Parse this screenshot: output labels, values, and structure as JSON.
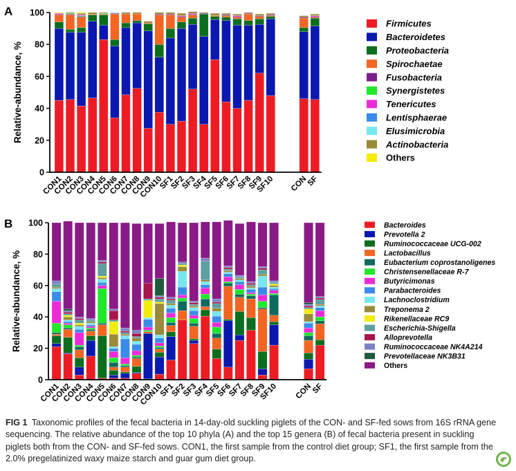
{
  "panels": [
    {
      "label": "A",
      "ylabel": "Relative-abundance, %",
      "ylim": [
        0,
        100
      ],
      "yticks": [
        0,
        20,
        40,
        60,
        80,
        100
      ]
    },
    {
      "label": "B",
      "ylabel": "Relative-abundance, %",
      "ylim": [
        0,
        100
      ],
      "yticks": [
        0,
        20,
        40,
        60,
        80,
        100
      ]
    }
  ],
  "chart_data": [
    {
      "type": "bar",
      "stacked": true,
      "ylabel": "Relative-abundance, %",
      "ylim": [
        0,
        100
      ],
      "grid": false,
      "legend": "right",
      "categories": [
        "CON1",
        "CON2",
        "CON3",
        "CON4",
        "CON5",
        "CON6",
        "CON7",
        "CON8",
        "CON9",
        "CON10",
        "SF1",
        "SF2",
        "SF3",
        "SF4",
        "SF5",
        "SF6",
        "SF7",
        "SF8",
        "SF9",
        "SF10",
        "CON",
        "SF"
      ],
      "series": [
        {
          "name": "Firmicutes",
          "color": "#ed1c24",
          "values": [
            45,
            45.5,
            41.5,
            46.5,
            83,
            34,
            48.5,
            52.5,
            27.5,
            37.5,
            30,
            32,
            52,
            30,
            70.5,
            44,
            40,
            45,
            62,
            48,
            46,
            45.5
          ]
        },
        {
          "name": "Bacteroidetes",
          "color": "#0a18b0",
          "values": [
            45,
            42,
            46,
            48,
            9,
            45,
            42,
            41,
            61,
            34.5,
            54,
            58,
            40.5,
            55,
            25,
            51,
            52,
            47,
            30.5,
            48,
            42,
            46
          ]
        },
        {
          "name": "Proteobacteria",
          "color": "#0b6e1e",
          "values": [
            4,
            2,
            3,
            4,
            6.5,
            4,
            3,
            1.5,
            4.5,
            8,
            6,
            4,
            4,
            14,
            2,
            2,
            4,
            3,
            3.5,
            1.5,
            2.5,
            5
          ]
        },
        {
          "name": "Spirochaetae",
          "color": "#f26522",
          "values": [
            4.5,
            9,
            6.5,
            0.5,
            0.5,
            16,
            5.5,
            4,
            0.5,
            18.5,
            8.5,
            3,
            2,
            0,
            0.5,
            1,
            1,
            4,
            1.5,
            0.5,
            6,
            0.5
          ]
        },
        {
          "name": "Fusobacteria",
          "color": "#7b1f8e",
          "values": [
            0.5,
            0.5,
            0.5,
            0,
            0,
            0.5,
            0,
            0,
            0,
            0.5,
            0.5,
            0.5,
            0.5,
            0.5,
            0,
            0.5,
            0.5,
            0.5,
            0.5,
            0.5,
            0.5,
            0.5
          ]
        },
        {
          "name": "Synergistetes",
          "color": "#1fe82a",
          "values": [
            0,
            0.5,
            0.5,
            0,
            0.5,
            0,
            0,
            0,
            0,
            0,
            0,
            0,
            0,
            0,
            0,
            0,
            0,
            0,
            0,
            0,
            0,
            0
          ]
        },
        {
          "name": "Tenericutes",
          "color": "#ec2bd8",
          "values": [
            0.5,
            0,
            0.5,
            0,
            0,
            0,
            0,
            0,
            0,
            0,
            0,
            0.5,
            0.5,
            0,
            0,
            0,
            0.5,
            0,
            0,
            0,
            0,
            0.5
          ]
        },
        {
          "name": "Lentisphaerae",
          "color": "#3a8be8",
          "values": [
            0,
            0,
            0,
            0,
            0,
            0,
            0,
            0,
            0,
            0,
            0,
            0,
            0,
            0,
            0,
            0,
            0,
            0,
            0,
            0,
            0,
            0
          ]
        },
        {
          "name": "Elusimicrobia",
          "color": "#78e6ef",
          "values": [
            0,
            0,
            0,
            0,
            0,
            0.5,
            0,
            0,
            0,
            0,
            0,
            0,
            0,
            0,
            0,
            0,
            0,
            0,
            0,
            0,
            0,
            0
          ]
        },
        {
          "name": "Actinobacteria",
          "color": "#9a8a3a",
          "values": [
            0,
            0.5,
            1,
            1,
            0.5,
            0,
            1,
            1,
            1,
            1,
            1,
            1.5,
            1,
            0.5,
            1.5,
            1,
            1,
            0.5,
            1,
            1,
            1,
            1
          ]
        },
        {
          "name": "Others",
          "color": "#f3ec0a",
          "values": [
            0.5,
            0,
            0.5,
            0,
            0,
            0,
            0,
            0,
            0,
            0,
            0,
            0,
            0,
            0,
            0,
            0,
            0,
            0,
            0,
            0,
            0,
            0
          ]
        }
      ]
    },
    {
      "type": "bar",
      "stacked": true,
      "ylabel": "Relative-abundance, %",
      "ylim": [
        0,
        100
      ],
      "grid": false,
      "legend": "right",
      "categories": [
        "CON1",
        "CON2",
        "CON3",
        "CON4",
        "CON5",
        "CON6",
        "CON7",
        "CON8",
        "CON9",
        "CON10",
        "SF1",
        "SF2",
        "SF3",
        "SF4",
        "SF5",
        "SF6",
        "SF7",
        "SF8",
        "SF9",
        "SF10",
        "CON",
        "SF"
      ],
      "series": [
        {
          "name": "Bacteroides",
          "color": "#ed1c24",
          "values": [
            21,
            16.5,
            3,
            15,
            1,
            1,
            1,
            4,
            0.5,
            3.5,
            12.5,
            38,
            23,
            40.5,
            13.5,
            8,
            25,
            31.5,
            3,
            22,
            7,
            22
          ]
        },
        {
          "name": "Prevotella 2",
          "color": "#0a18b0",
          "values": [
            2,
            0.5,
            5,
            10,
            0,
            2,
            3,
            0.5,
            29,
            11,
            15,
            0,
            2,
            0,
            0,
            29.5,
            3.5,
            0,
            4,
            13,
            6,
            0
          ]
        },
        {
          "name": "Ruminococcaceae UCG-002",
          "color": "#0b6e1e",
          "values": [
            5,
            10,
            6,
            3,
            27,
            3,
            1,
            4,
            0,
            3,
            3,
            0,
            1,
            4,
            6,
            1,
            15,
            8,
            11,
            2,
            4,
            3.5
          ]
        },
        {
          "name": "Lactobacillus",
          "color": "#f26522",
          "values": [
            1,
            5,
            5,
            3,
            7,
            2,
            3,
            5,
            1,
            2,
            4,
            6,
            8,
            2,
            7,
            21,
            9,
            12,
            27,
            4,
            8,
            10
          ]
        },
        {
          "name": "Eubacterium coprostanoligenes",
          "color": "#106a5e",
          "values": [
            1,
            1,
            2,
            1,
            1,
            3,
            1,
            1,
            0,
            1,
            2,
            6,
            2,
            5,
            3,
            2,
            2,
            2,
            1,
            13,
            3,
            2
          ]
        },
        {
          "name": "Christensenellaceae R-7",
          "color": "#1fe82a",
          "values": [
            6,
            2,
            1,
            1,
            22,
            3,
            1,
            1,
            1,
            1,
            3,
            2,
            3,
            3,
            4,
            1,
            3,
            1,
            4,
            1,
            2,
            2.5
          ]
        },
        {
          "name": "Butyricimonas",
          "color": "#ec2bd8",
          "values": [
            14,
            1,
            8,
            1,
            2,
            4,
            4,
            3,
            2,
            2,
            3,
            2,
            2,
            4,
            3,
            3,
            3,
            1,
            4,
            2,
            3,
            4
          ]
        },
        {
          "name": "Parabacteroides",
          "color": "#3a8be8",
          "values": [
            6,
            1,
            2,
            1,
            2,
            2,
            12,
            4,
            5,
            3,
            3,
            5,
            3,
            2,
            4,
            2,
            2,
            2,
            5,
            1,
            3,
            2
          ]
        },
        {
          "name": "Lachnoclostridium",
          "color": "#78e6ef",
          "values": [
            2,
            1,
            2,
            1,
            2,
            1,
            2,
            2,
            1,
            2,
            2,
            10,
            2,
            2,
            3,
            1,
            1,
            1,
            7,
            1,
            1,
            1
          ]
        },
        {
          "name": "Treponema 2",
          "color": "#9a8a3a",
          "values": [
            1,
            2,
            1,
            1,
            1,
            8,
            1,
            2,
            0,
            20,
            1,
            3,
            1,
            1,
            2,
            1,
            1,
            1,
            1,
            1,
            5,
            1
          ]
        },
        {
          "name": "Rikenellaceae RC9",
          "color": "#f3ec0a",
          "values": [
            0,
            1,
            1,
            0,
            1,
            8,
            0,
            0,
            11,
            1,
            0,
            1,
            0,
            0,
            0,
            0,
            0,
            0,
            0,
            1,
            3,
            0
          ]
        },
        {
          "name": "Escherichia-Shigella",
          "color": "#5e9fa0",
          "values": [
            2,
            1,
            2,
            1,
            8,
            1,
            1,
            1,
            1,
            2,
            2,
            1,
            1,
            12,
            3,
            1,
            1,
            1,
            3,
            1,
            1,
            3
          ]
        },
        {
          "name": "Alloprevotella",
          "color": "#a8144c",
          "values": [
            0,
            1,
            1,
            0,
            1,
            6,
            1,
            2,
            10,
            1,
            1,
            0,
            1,
            0,
            1,
            1,
            0,
            1,
            1,
            0,
            1,
            1
          ]
        },
        {
          "name": "Ruminococcaceae NK4A214",
          "color": "#7a82c6",
          "values": [
            2,
            1,
            1,
            1,
            1,
            1,
            2,
            2,
            0,
            1,
            1,
            1,
            1,
            2,
            2,
            1,
            1,
            1,
            1,
            1,
            1,
            1
          ]
        },
        {
          "name": "Prevotellaceae NK3B31",
          "color": "#1e5a3c",
          "values": [
            0,
            1,
            0,
            0,
            0,
            0,
            0,
            0,
            0,
            11,
            0,
            0,
            0,
            0,
            0,
            0,
            0,
            0,
            0,
            0,
            1,
            0
          ]
        },
        {
          "name": "Others",
          "color": "#8a1a86",
          "values": [
            37,
            56,
            60,
            61,
            24,
            55,
            67,
            68,
            38,
            35,
            48,
            25,
            50,
            23,
            49,
            29,
            33,
            38,
            28,
            37,
            51,
            47
          ]
        }
      ]
    }
  ],
  "caption": {
    "label": "FIG 1",
    "text": "Taxonomic profiles of the fecal bacteria in 14-day-old suckling piglets of the CON- and SF-fed sows from 16S rRNA gene sequencing. The relative abundance of the top 10 phyla (A) and the top 15 genera (B) of fecal bacteria present in suckling piglets both from the CON- and SF-fed sows. CON1, the first sample from the control diet group; SF1, the first sample from the 2.0% pregelatinized waxy maize starch and guar gum diet group."
  },
  "badge_icon": "journal-badge-icon"
}
